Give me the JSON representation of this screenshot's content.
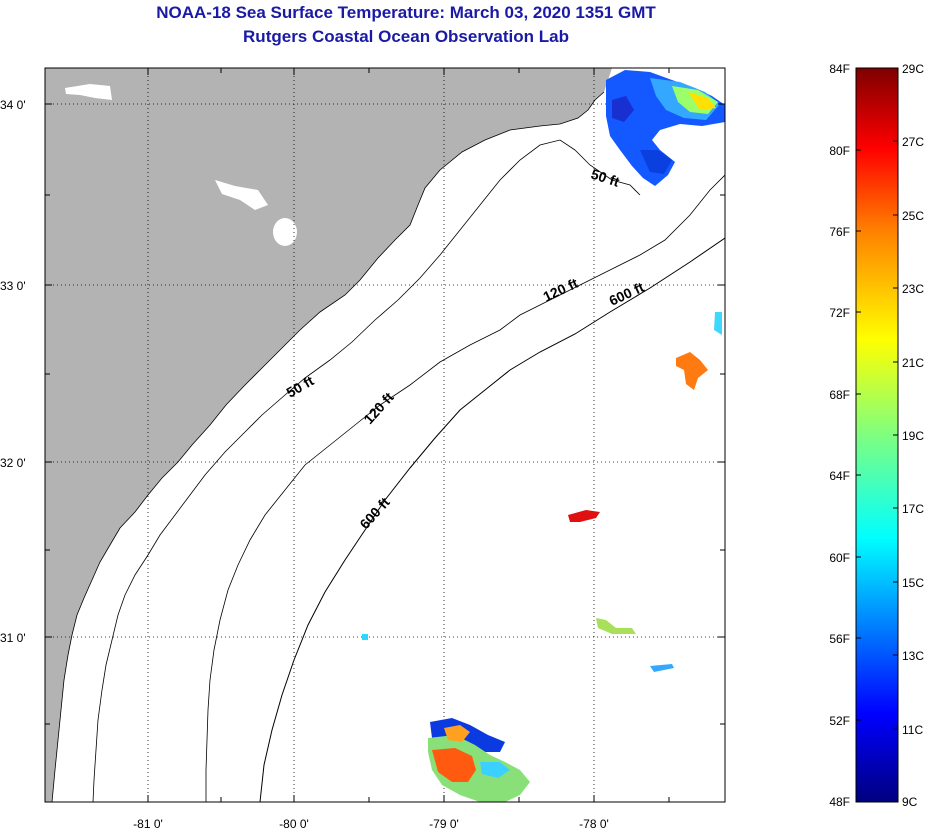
{
  "title_line1": "NOAA-18 Sea Surface Temperature:  March 03, 2020 1351 GMT",
  "title_line2": "Rutgers Coastal Ocean Observation Lab",
  "map": {
    "lat_labels": [
      "34 0'",
      "33 0'",
      "32 0'",
      "31 0'"
    ],
    "lon_labels": [
      "-81 0'",
      "-80 0'",
      "-79 0'",
      "-78 0'"
    ],
    "contour_labels": [
      "50 ft",
      "120 ft",
      "600 ft",
      "50 ft",
      "120 ft",
      "600 ft"
    ],
    "land_color": "#b3b3b3",
    "ocean_color": "#ffffff"
  },
  "colorbar": {
    "fahrenheit_labels": [
      "84F",
      "80F",
      "76F",
      "72F",
      "68F",
      "64F",
      "60F",
      "56F",
      "52F",
      "48F"
    ],
    "celsius_labels": [
      "29C",
      "27C",
      "25C",
      "23C",
      "21C",
      "19C",
      "17C",
      "15C",
      "13C",
      "11C",
      "9C"
    ],
    "colors": [
      "#00007f",
      "#0000ff",
      "#007fff",
      "#00ffff",
      "#7fff7f",
      "#ffff00",
      "#ff7f00",
      "#ff0000",
      "#7f0000"
    ]
  }
}
